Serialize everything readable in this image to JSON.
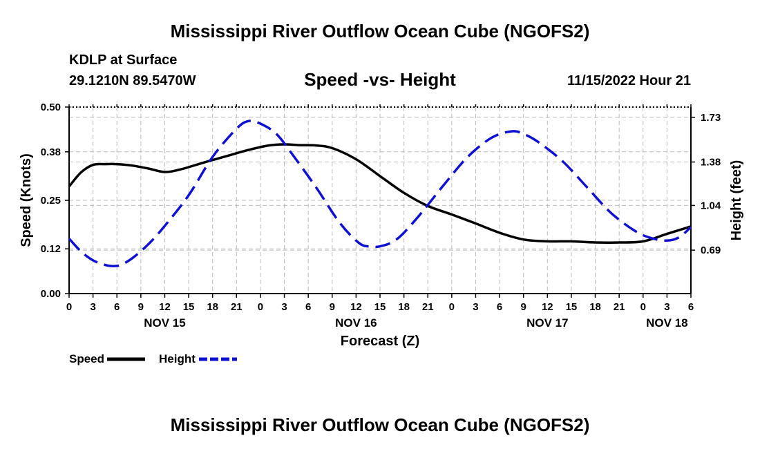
{
  "page": {
    "title_top": "Mississippi River Outflow Ocean Cube (NGOFS2)",
    "title_bottom": "Mississippi River Outflow Ocean Cube (NGOFS2)",
    "station": "KDLP at Surface",
    "coords": "29.1210N  89.5470W",
    "subtitle": "Speed -vs- Height",
    "datetime": "11/15/2022 Hour 21"
  },
  "colors": {
    "speed": "#000000",
    "height": "#1010d0",
    "grid": "#bbbbbb"
  },
  "chart_data": {
    "type": "line",
    "title": "Speed -vs- Height",
    "xlabel": "Forecast (Z)",
    "ylabel": "Speed (Knots)",
    "y2label": "Height (feet)",
    "x_unit": "hours since Nov 15 00Z",
    "xlim": [
      0,
      78
    ],
    "ylim": [
      0,
      0.5
    ],
    "y2lim": [
      0.35,
      1.81
    ],
    "x_ticks": [
      0,
      3,
      6,
      9,
      12,
      15,
      18,
      21,
      24,
      27,
      30,
      33,
      36,
      39,
      42,
      45,
      48,
      51,
      54,
      57,
      60,
      63,
      66,
      69,
      72,
      75,
      78
    ],
    "x_tick_labels": [
      "0",
      "3",
      "6",
      "9",
      "12",
      "15",
      "18",
      "21",
      "0",
      "3",
      "6",
      "9",
      "12",
      "15",
      "18",
      "21",
      "0",
      "3",
      "6",
      "9",
      "12",
      "15",
      "18",
      "21",
      "0",
      "3",
      "6"
    ],
    "date_labels": [
      {
        "x": 12,
        "label": "NOV 15"
      },
      {
        "x": 36,
        "label": "NOV 16"
      },
      {
        "x": 60,
        "label": "NOV 17"
      },
      {
        "x": 75,
        "label": "NOV 18"
      }
    ],
    "y_ticks": [
      0.0,
      0.12,
      0.25,
      0.38,
      0.5
    ],
    "y_tick_labels": [
      "0.00",
      "0.12",
      "0.25",
      "0.38",
      "0.50"
    ],
    "y2_ticks": [
      0.69,
      1.04,
      1.38,
      1.73
    ],
    "y2_tick_labels": [
      "0.69",
      "1.04",
      "1.38",
      "1.73"
    ],
    "grid": true,
    "legend": [
      {
        "name": "Speed",
        "style": "solid"
      },
      {
        "name": "Height",
        "style": "dashed"
      }
    ],
    "series": [
      {
        "name": "Speed",
        "axis": "left",
        "style": "solid",
        "x": [
          0,
          1.5,
          3,
          4.5,
          6,
          8,
          10,
          12,
          14,
          17,
          20,
          22.5,
          25,
          27,
          29,
          31,
          33,
          36,
          39,
          42,
          45,
          48,
          51,
          54,
          57,
          60,
          63,
          66,
          69,
          72,
          75,
          78
        ],
        "values": [
          0.287,
          0.325,
          0.345,
          0.347,
          0.347,
          0.343,
          0.335,
          0.326,
          0.333,
          0.352,
          0.37,
          0.385,
          0.397,
          0.4,
          0.398,
          0.397,
          0.39,
          0.36,
          0.315,
          0.27,
          0.235,
          0.212,
          0.188,
          0.163,
          0.145,
          0.14,
          0.14,
          0.137,
          0.137,
          0.14,
          0.16,
          0.18
        ]
      },
      {
        "name": "Height",
        "axis": "right",
        "style": "dashed",
        "x": [
          0,
          1.5,
          3,
          4.5,
          5.5,
          6.5,
          8,
          10,
          12,
          15,
          18,
          21,
          22.5,
          24,
          26,
          28,
          31,
          34,
          36.5,
          38,
          39,
          41,
          43.5,
          47,
          50,
          53,
          55.5,
          57,
          59,
          62,
          65,
          68,
          71,
          73,
          75,
          76.5,
          78
        ],
        "values": [
          0.78,
          0.68,
          0.61,
          0.575,
          0.565,
          0.575,
          0.63,
          0.74,
          0.88,
          1.12,
          1.42,
          1.64,
          1.7,
          1.68,
          1.6,
          1.44,
          1.18,
          0.9,
          0.74,
          0.72,
          0.72,
          0.77,
          0.93,
          1.2,
          1.42,
          1.57,
          1.62,
          1.6,
          1.53,
          1.38,
          1.18,
          0.98,
          0.84,
          0.785,
          0.765,
          0.79,
          0.87
        ]
      }
    ]
  }
}
